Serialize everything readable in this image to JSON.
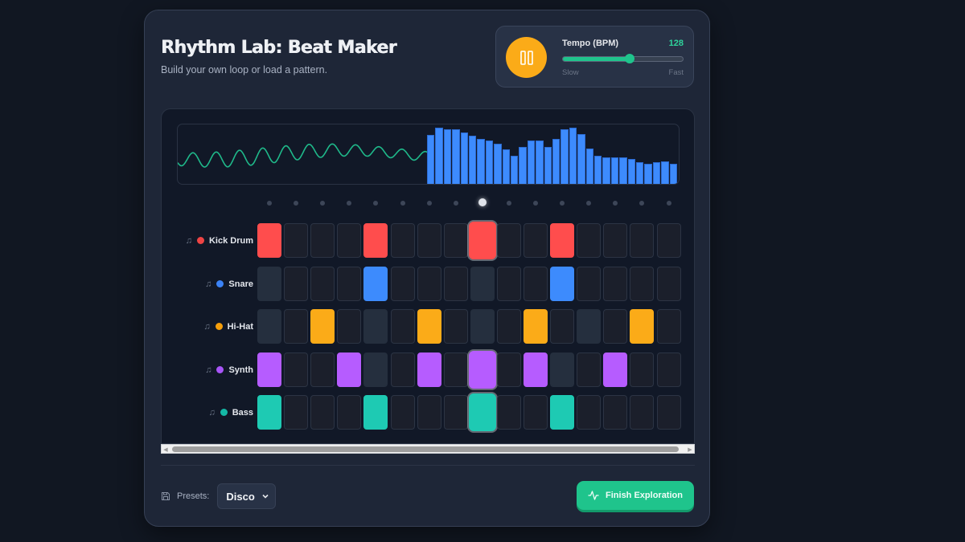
{
  "header": {
    "title": "Rhythm Lab: Beat Maker",
    "subtitle": "Build your own loop or load a pattern."
  },
  "transport": {
    "play_state_icon": "pause-icon",
    "tempo_label": "Tempo (BPM)",
    "tempo_value": "128",
    "slider_min_label": "Slow",
    "slider_max_label": "Fast",
    "slider_fill_percent": 56,
    "accent_color": "#fbab18",
    "tempo_color": "#1fc48c"
  },
  "visualizer": {
    "waveform_color": "#1fb98a",
    "spectrum_color": "#3d8bfd",
    "spectrum_bars": [
      63,
      72,
      70,
      70,
      66,
      62,
      58,
      56,
      52,
      45,
      37,
      48,
      56,
      56,
      48,
      58,
      70,
      72,
      64,
      46,
      37,
      35,
      35,
      35,
      33,
      29,
      27,
      29,
      30,
      27
    ]
  },
  "sequencer": {
    "steps": 16,
    "current_step": 8,
    "tracks": [
      {
        "name": "Kick Drum",
        "color": "#ef4444",
        "pad_color": "#ff4d4d",
        "pattern": "A...A...A..A...."
      },
      {
        "name": "Snare",
        "color": "#3b82f6",
        "pad_color": "#3d8bfd",
        "pattern": "G...A...G..A...."
      },
      {
        "name": "Hi-Hat",
        "color": "#f59e0b",
        "pad_color": "#fbab18",
        "pattern": "G.A.G.A.G.A.G.A."
      },
      {
        "name": "Synth",
        "color": "#a855f7",
        "pad_color": "#b65cff",
        "pattern": "A..AG.A.A.AG.A.."
      },
      {
        "name": "Bass",
        "color": "#14b8a6",
        "pad_color": "#1ecab3",
        "pattern": "A...A...A..A...."
      }
    ]
  },
  "footer": {
    "presets_label": "Presets:",
    "preset_selected": "Disco",
    "finish_label": "Finish Exploration"
  }
}
